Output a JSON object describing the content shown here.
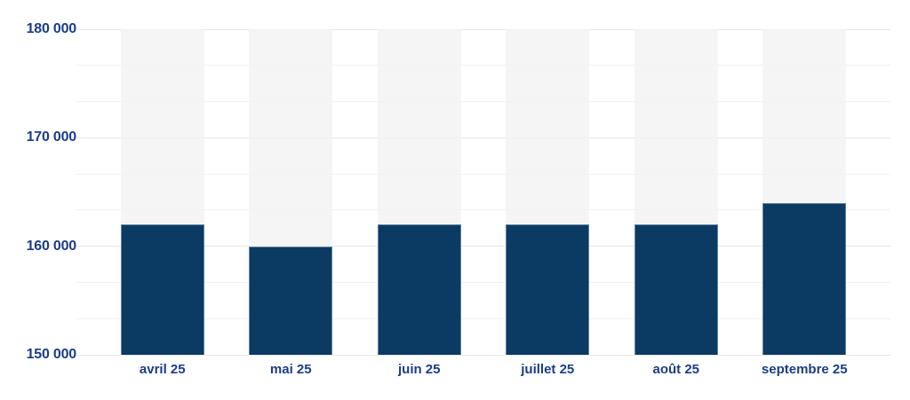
{
  "chart_data": {
    "type": "bar",
    "categories": [
      "avril 25",
      "mai 25",
      "juin 25",
      "juillet 25",
      "août 25",
      "septembre 25"
    ],
    "values": [
      162000,
      160000,
      162000,
      162000,
      162000,
      164000
    ],
    "title": "",
    "xlabel": "",
    "ylabel": "",
    "ylim": [
      150000,
      180000
    ],
    "ytick_values": [
      180000,
      170000,
      160000,
      150000
    ],
    "ytick_labels": [
      "180 000",
      "170 000",
      "160 000",
      "150 000"
    ],
    "minor_divisions_per_major": 3,
    "grid": true,
    "legend": false,
    "layout_hints": {
      "bar_orientation": "vertical",
      "column_background_bands": true,
      "y_axis_side": "left",
      "x_labels_below_axis": true
    },
    "colors": {
      "bar": "#0b3a62",
      "bar_border": "#a8bfd0",
      "column_band": "#f5f5f5",
      "grid_major": "#e7e7e7",
      "grid_minor": "#f2f2f2",
      "axis_label": "#1b3d87",
      "background": "#ffffff"
    }
  }
}
